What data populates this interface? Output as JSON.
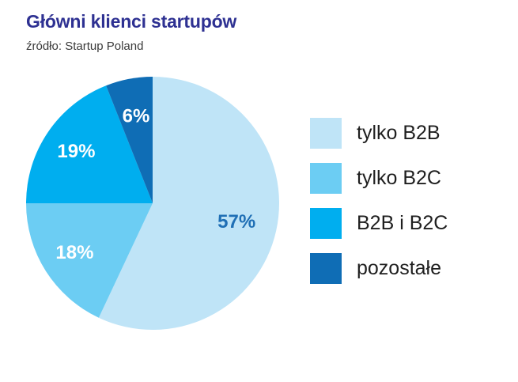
{
  "header": {
    "title": "Główni klienci startupów",
    "subtitle": "źródło: Startup Poland"
  },
  "chart_data": {
    "type": "pie",
    "title": "Główni klienci startupów",
    "subtitle": "źródło: Startup Poland",
    "unit": "%",
    "legend_position": "right",
    "slices": [
      {
        "label": "tylko B2B",
        "value": 57,
        "display": "57%",
        "color": "#bfe4f7",
        "label_color": "#1f6fb5"
      },
      {
        "label": "tylko B2C",
        "value": 18,
        "display": "18%",
        "color": "#6ccdf3",
        "label_color": "#ffffff"
      },
      {
        "label": "B2B i B2C",
        "value": 19,
        "display": "19%",
        "color": "#00aeef",
        "label_color": "#ffffff"
      },
      {
        "label": "pozostałe",
        "value": 6,
        "display": "6%",
        "color": "#0f6db5",
        "label_color": "#ffffff"
      }
    ]
  }
}
